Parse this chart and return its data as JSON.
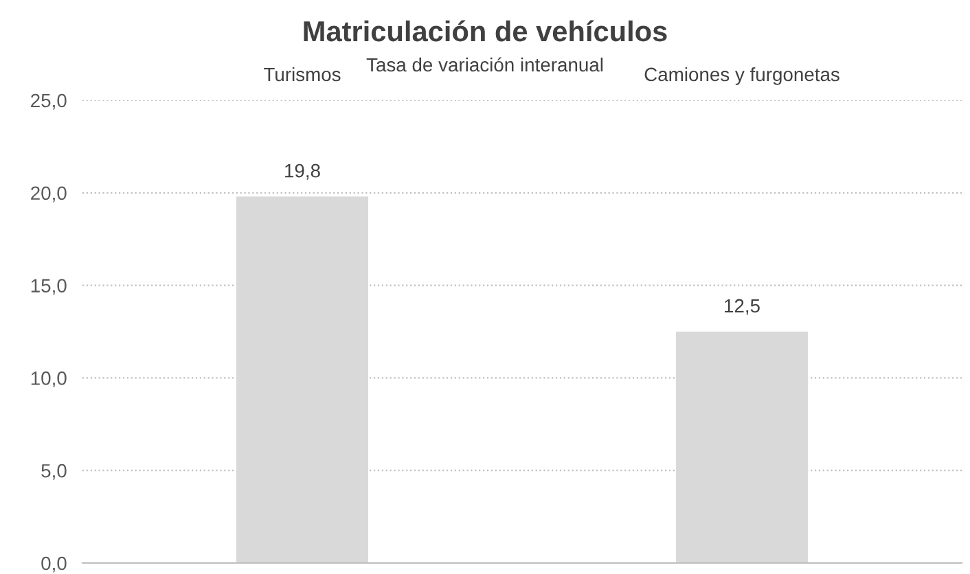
{
  "chart_data": {
    "type": "bar",
    "title": "Matriculación de vehículos",
    "subtitle": "Tasa de variación interanual",
    "categories": [
      "Turismos",
      "Camiones y furgonetas"
    ],
    "values": [
      19.8,
      12.5
    ],
    "color": "#d9d9d9",
    "value_labels": [
      "19,8",
      "12,5"
    ],
    "ylim": [
      0,
      25
    ],
    "yticks": [
      {
        "value": 0,
        "label": "0,0"
      },
      {
        "value": 5,
        "label": "5,0"
      },
      {
        "value": 10,
        "label": "10,0"
      },
      {
        "value": 15,
        "label": "15,0"
      },
      {
        "value": 20,
        "label": "20,0"
      },
      {
        "value": 25,
        "label": "25,0"
      }
    ],
    "grid": "y"
  }
}
